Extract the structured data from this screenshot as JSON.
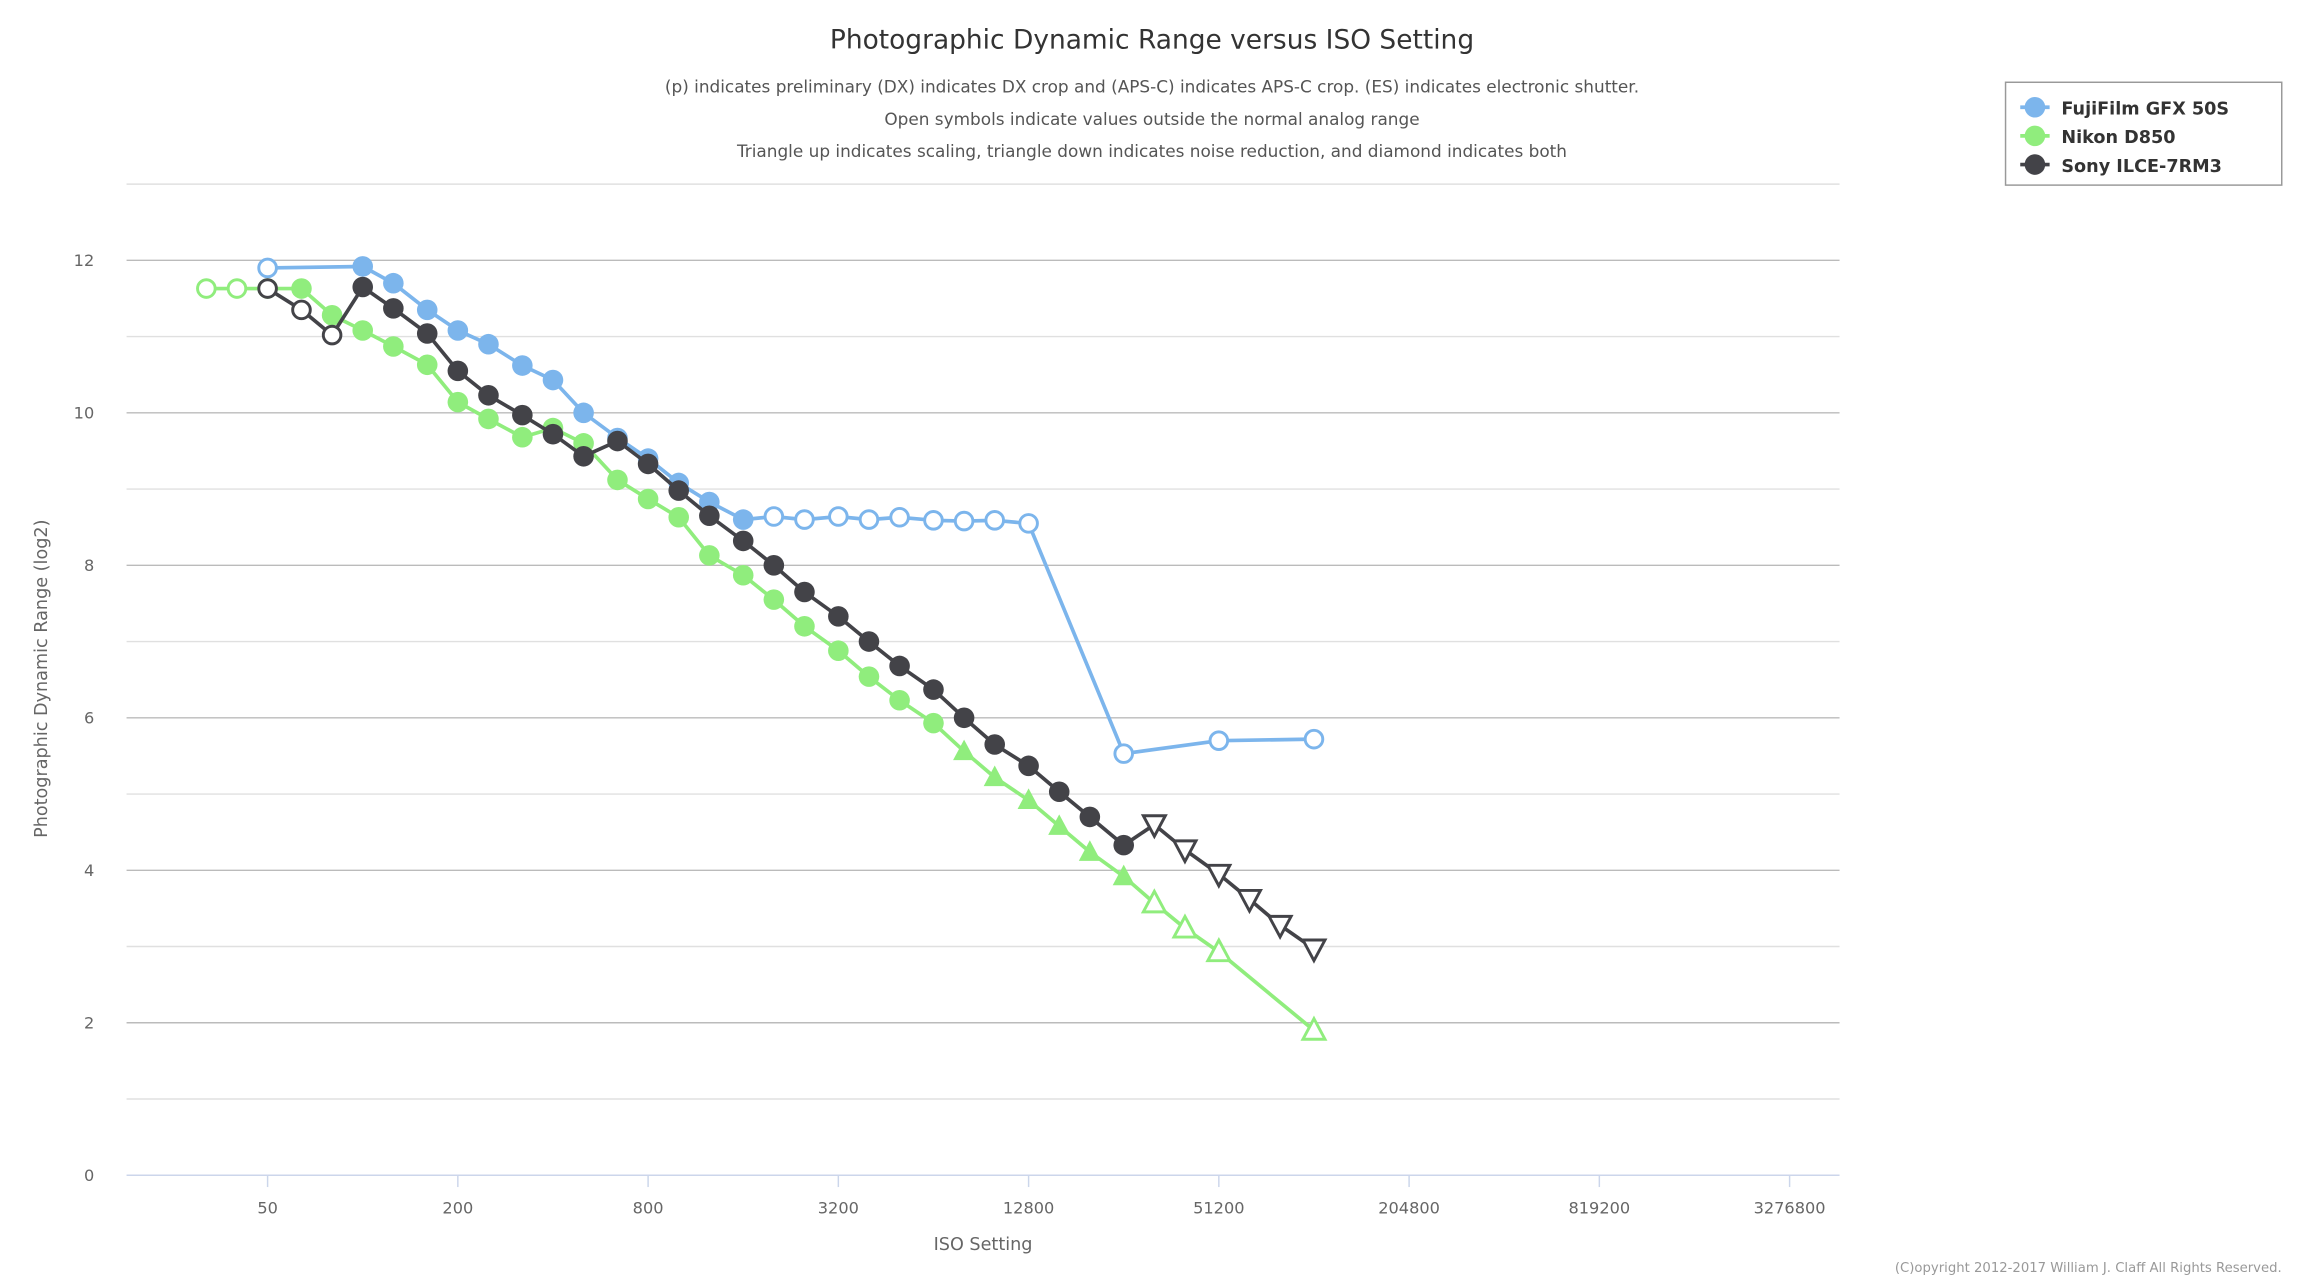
{
  "chart_data": {
    "type": "line",
    "title": "Photographic Dynamic Range versus ISO Setting",
    "subtitle": [
      "(p) indicates preliminary (DX) indicates DX crop and (APS-C) indicates APS-C crop. (ES) indicates electronic shutter.",
      "Open symbols indicate values outside the normal analog range",
      "Triangle up indicates scaling, triangle down indicates noise reduction, and diamond indicates both"
    ],
    "xlabel": "ISO Setting",
    "ylabel": "Photographic Dynamic Range (log2)",
    "x_scale": "log2",
    "xlim": [
      25,
      4800000
    ],
    "ylim": [
      0,
      13
    ],
    "grid": true,
    "legend_position": "top-right",
    "x_ticks": [
      "50",
      "200",
      "800",
      "3200",
      "12800",
      "51200",
      "204800",
      "819200",
      "3276800"
    ],
    "x_tick_values": [
      50,
      200,
      800,
      3200,
      12800,
      51200,
      204800,
      819200,
      3276800
    ],
    "y_ticks": [
      "0",
      "2",
      "4",
      "6",
      "8",
      "10",
      "12"
    ],
    "y_tick_values": [
      0,
      2,
      4,
      6,
      8,
      10,
      12
    ],
    "credit": "(C)opyright 2012-2017 William J. Claff All Rights Reserved.",
    "series": [
      {
        "name": "FujiFilm GFX 50S",
        "color": "#7cb5ec",
        "points": [
          [
            50,
            11.9,
            "circle-open"
          ],
          [
            100,
            11.92,
            "circle"
          ],
          [
            125,
            11.7,
            "circle"
          ],
          [
            160,
            11.35,
            "circle"
          ],
          [
            200,
            11.08,
            "circle"
          ],
          [
            250,
            10.9,
            "circle"
          ],
          [
            320,
            10.62,
            "circle"
          ],
          [
            400,
            10.43,
            "circle"
          ],
          [
            500,
            10.0,
            "circle"
          ],
          [
            640,
            9.67,
            "circle"
          ],
          [
            800,
            9.4,
            "circle"
          ],
          [
            1000,
            9.08,
            "circle"
          ],
          [
            1250,
            8.83,
            "circle"
          ],
          [
            1600,
            8.6,
            "circle"
          ],
          [
            2000,
            8.64,
            "circle-open"
          ],
          [
            2500,
            8.6,
            "circle-open"
          ],
          [
            3200,
            8.64,
            "circle-open"
          ],
          [
            4000,
            8.6,
            "circle-open"
          ],
          [
            5000,
            8.63,
            "circle-open"
          ],
          [
            6400,
            8.59,
            "circle-open"
          ],
          [
            8000,
            8.58,
            "circle-open"
          ],
          [
            10000,
            8.59,
            "circle-open"
          ],
          [
            12800,
            8.55,
            "circle-open"
          ],
          [
            25600,
            5.53,
            "circle-open"
          ],
          [
            51200,
            5.7,
            "circle-open"
          ],
          [
            102400,
            5.72,
            "circle-open"
          ]
        ]
      },
      {
        "name": "Nikon D850",
        "color": "#90ed7d",
        "points": [
          [
            32,
            11.63,
            "circle-open"
          ],
          [
            40,
            11.63,
            "circle-open"
          ],
          [
            50,
            11.63,
            "circle"
          ],
          [
            64,
            11.63,
            "circle"
          ],
          [
            80,
            11.28,
            "circle"
          ],
          [
            100,
            11.08,
            "circle"
          ],
          [
            125,
            10.87,
            "circle"
          ],
          [
            160,
            10.63,
            "circle"
          ],
          [
            200,
            10.14,
            "circle"
          ],
          [
            250,
            9.92,
            "circle"
          ],
          [
            320,
            9.68,
            "circle"
          ],
          [
            400,
            9.8,
            "circle"
          ],
          [
            500,
            9.6,
            "circle"
          ],
          [
            640,
            9.12,
            "circle"
          ],
          [
            800,
            8.87,
            "circle"
          ],
          [
            1000,
            8.63,
            "circle"
          ],
          [
            1250,
            8.13,
            "circle"
          ],
          [
            1600,
            7.87,
            "circle"
          ],
          [
            2000,
            7.55,
            "circle"
          ],
          [
            2500,
            7.2,
            "circle"
          ],
          [
            3200,
            6.88,
            "circle"
          ],
          [
            4000,
            6.54,
            "circle"
          ],
          [
            5000,
            6.23,
            "circle"
          ],
          [
            6400,
            5.93,
            "circle"
          ],
          [
            8000,
            5.56,
            "tri-up"
          ],
          [
            10000,
            5.22,
            "tri-up"
          ],
          [
            12800,
            4.92,
            "tri-up"
          ],
          [
            16000,
            4.58,
            "tri-up"
          ],
          [
            20000,
            4.24,
            "tri-up"
          ],
          [
            25600,
            3.92,
            "tri-up"
          ],
          [
            32000,
            3.57,
            "tri-up-open"
          ],
          [
            40000,
            3.24,
            "tri-up-open"
          ],
          [
            51200,
            2.93,
            "tri-up-open"
          ],
          [
            102400,
            1.9,
            "tri-up-open"
          ]
        ]
      },
      {
        "name": "Sony ILCE-7RM3",
        "color": "#434348",
        "points": [
          [
            50,
            11.63,
            "circle-open"
          ],
          [
            64,
            11.35,
            "circle-open"
          ],
          [
            80,
            11.02,
            "circle-open"
          ],
          [
            100,
            11.65,
            "circle"
          ],
          [
            125,
            11.37,
            "circle"
          ],
          [
            160,
            11.04,
            "circle"
          ],
          [
            200,
            10.55,
            "circle"
          ],
          [
            250,
            10.23,
            "circle"
          ],
          [
            320,
            9.97,
            "circle"
          ],
          [
            400,
            9.72,
            "circle"
          ],
          [
            500,
            9.43,
            "circle"
          ],
          [
            640,
            9.63,
            "circle"
          ],
          [
            800,
            9.33,
            "circle"
          ],
          [
            1000,
            8.98,
            "circle"
          ],
          [
            1250,
            8.65,
            "circle"
          ],
          [
            1600,
            8.32,
            "circle"
          ],
          [
            2000,
            8.0,
            "circle"
          ],
          [
            2500,
            7.65,
            "circle"
          ],
          [
            3200,
            7.33,
            "circle"
          ],
          [
            4000,
            7.0,
            "circle"
          ],
          [
            5000,
            6.68,
            "circle"
          ],
          [
            6400,
            6.37,
            "circle"
          ],
          [
            8000,
            6.0,
            "circle"
          ],
          [
            10000,
            5.65,
            "circle"
          ],
          [
            12800,
            5.37,
            "circle"
          ],
          [
            16000,
            5.03,
            "circle"
          ],
          [
            20000,
            4.7,
            "circle"
          ],
          [
            25600,
            4.33,
            "circle"
          ],
          [
            32000,
            4.6,
            "tri-down-open"
          ],
          [
            40000,
            4.27,
            "tri-down-open"
          ],
          [
            51200,
            3.95,
            "tri-down-open"
          ],
          [
            64000,
            3.62,
            "tri-down-open"
          ],
          [
            80000,
            3.28,
            "tri-down-open"
          ],
          [
            102400,
            2.97,
            "tri-down-open"
          ]
        ]
      }
    ]
  }
}
